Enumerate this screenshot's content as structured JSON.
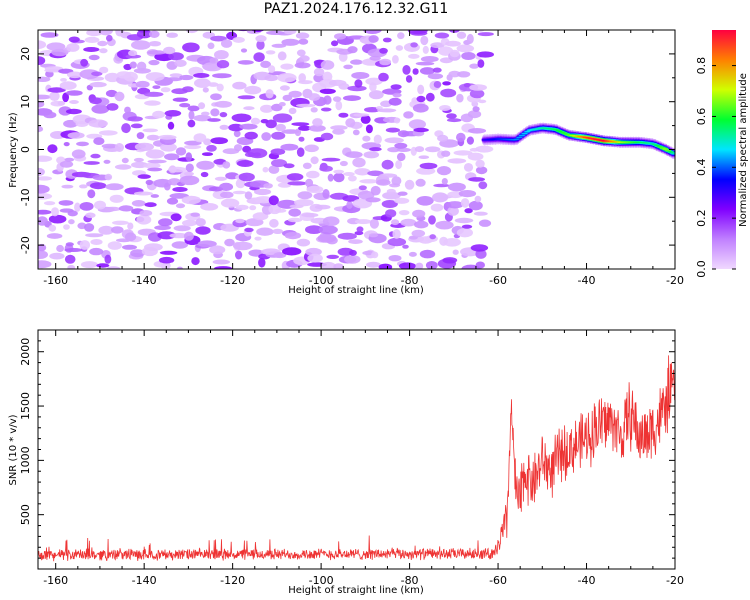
{
  "title": "PAZ1.2024.176.12.32.G11",
  "chart_data": [
    {
      "type": "heatmap",
      "xlabel": "Height of straight line (km)",
      "ylabel": "Frequency (Hz)",
      "xlim": [
        -164,
        -20
      ],
      "ylim": [
        -25,
        25
      ],
      "xticks": [
        -160,
        -140,
        -120,
        -100,
        -80,
        -60,
        -40,
        -20
      ],
      "yticks": [
        -20,
        -10,
        0,
        10,
        20
      ],
      "noise_region_x": [
        -164,
        -63
      ],
      "ridge": {
        "x": [
          -63,
          -60,
          -56,
          -53,
          -50,
          -47,
          -44,
          -40,
          -36,
          -32,
          -28,
          -25,
          -22,
          -20
        ],
        "freq": [
          2.0,
          2.2,
          2.0,
          4.0,
          4.5,
          4.2,
          3.0,
          2.5,
          1.8,
          1.5,
          1.5,
          1.2,
          0.0,
          -1.0
        ],
        "amp": [
          0.3,
          0.35,
          0.4,
          0.45,
          0.5,
          0.55,
          0.6,
          0.85,
          0.9,
          0.65,
          0.55,
          0.5,
          0.65,
          0.45
        ]
      },
      "colorbar": {
        "label": "Normalized spectral amplitude",
        "range": [
          0.0,
          0.9
        ],
        "ticks": [
          0.0,
          0.2,
          0.4,
          0.6,
          0.8
        ],
        "colors": [
          "#f0d8ff",
          "#c080ff",
          "#8000ff",
          "#0000ff",
          "#00e5ff",
          "#00ff30",
          "#d0ff00",
          "#ff8000",
          "#ff0040"
        ]
      }
    },
    {
      "type": "line",
      "xlabel": "Height of straight line (km)",
      "ylabel": "SNR (10 * v/v)",
      "xlim": [
        -164,
        -20
      ],
      "ylim": [
        0,
        2200
      ],
      "xticks": [
        -160,
        -140,
        -120,
        -100,
        -80,
        -60,
        -40,
        -20
      ],
      "yticks": [
        500,
        1000,
        1500,
        2000
      ],
      "color": "#ee3333",
      "envelope": {
        "x": [
          -164,
          -61,
          -60,
          -58,
          -57,
          -56,
          -55,
          -54,
          -52,
          -50,
          -48,
          -46,
          -44,
          -42,
          -40,
          -38,
          -36,
          -34,
          -32,
          -30,
          -28,
          -26,
          -24,
          -22,
          -21,
          -20
        ],
        "mean": [
          130,
          140,
          200,
          450,
          1500,
          700,
          600,
          900,
          800,
          1000,
          900,
          1050,
          1100,
          1150,
          1200,
          1300,
          1350,
          1350,
          1200,
          1450,
          1200,
          1250,
          1350,
          1500,
          1700,
          1650
        ],
        "amp": [
          60,
          60,
          120,
          250,
          200,
          300,
          350,
          300,
          300,
          300,
          300,
          300,
          300,
          300,
          300,
          350,
          350,
          300,
          300,
          400,
          300,
          350,
          350,
          350,
          400,
          250
        ]
      }
    }
  ]
}
